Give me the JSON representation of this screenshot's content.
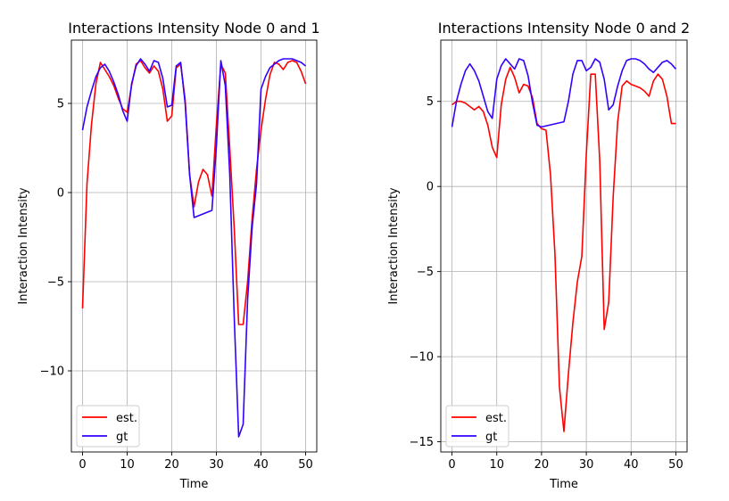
{
  "chart_data": [
    {
      "type": "line",
      "title": "Interactions Intensity Node 0 and 1",
      "xlabel": "Time",
      "ylabel": "Interaction Intensity",
      "xlim": [
        -2.5,
        52.5
      ],
      "ylim": [
        -14.55,
        8.55
      ],
      "xticks": [
        0,
        10,
        20,
        30,
        40,
        50
      ],
      "xtick_labels": [
        "0",
        "10",
        "20",
        "30",
        "40",
        "50"
      ],
      "yticks": [
        -10,
        -5,
        0,
        5
      ],
      "ytick_labels": [
        "−10",
        "−5",
        "0",
        "5"
      ],
      "grid": true,
      "legend_position": "lower left",
      "series": [
        {
          "name": "est.",
          "color": "#ff0000",
          "x": [
            0,
            0.5,
            1,
            2,
            3,
            4,
            5,
            6,
            7,
            8,
            9,
            10,
            11,
            12,
            13,
            14,
            15,
            16,
            17,
            18,
            19,
            20,
            21,
            22,
            23,
            24,
            25,
            26,
            27,
            28,
            29,
            30,
            31,
            32,
            33,
            34,
            35,
            36,
            37,
            38,
            39,
            40,
            41,
            42,
            43,
            44,
            45,
            46,
            47,
            48,
            49,
            50
          ],
          "y": [
            -6.5,
            -3.0,
            0.5,
            3.8,
            6.1,
            7.3,
            6.9,
            6.5,
            6.0,
            5.3,
            4.7,
            4.5,
            6.0,
            7.2,
            7.4,
            7.0,
            6.7,
            7.1,
            6.8,
            5.8,
            4.0,
            4.3,
            7.0,
            7.2,
            5.2,
            1.0,
            -0.8,
            0.6,
            1.3,
            1.0,
            -0.2,
            3.8,
            7.2,
            6.7,
            2.5,
            -2.0,
            -7.4,
            -7.4,
            -5.0,
            -1.5,
            1.3,
            3.5,
            5.2,
            6.6,
            7.3,
            7.2,
            6.9,
            7.3,
            7.4,
            7.3,
            6.8,
            6.1
          ]
        },
        {
          "name": "gt",
          "color": "#3300ff",
          "x": [
            0,
            1,
            2,
            3,
            4,
            5,
            6,
            7,
            8,
            9,
            10,
            11,
            12,
            13,
            14,
            15,
            16,
            17,
            18,
            19,
            20,
            21,
            22,
            23,
            24,
            25,
            26,
            29,
            30,
            31,
            32,
            33,
            34,
            35,
            36,
            37,
            38,
            39,
            40,
            41,
            42,
            43,
            44,
            45,
            46,
            47,
            48,
            49,
            50
          ],
          "y": [
            3.5,
            4.8,
            5.7,
            6.5,
            7.0,
            7.2,
            6.8,
            6.2,
            5.5,
            4.6,
            4.0,
            6.1,
            7.1,
            7.5,
            7.2,
            6.8,
            7.4,
            7.3,
            6.4,
            4.8,
            4.9,
            7.1,
            7.3,
            5.0,
            1.0,
            -1.4,
            -1.3,
            -1.0,
            2.6,
            7.4,
            6.0,
            1.0,
            -7.0,
            -13.7,
            -13.0,
            -6.0,
            -2.0,
            0.5,
            5.8,
            6.5,
            7.0,
            7.2,
            7.4,
            7.5,
            7.5,
            7.5,
            7.4,
            7.3,
            7.1
          ]
        }
      ]
    },
    {
      "type": "line",
      "title": "Interactions Intensity Node 0 and 2",
      "xlabel": "Time",
      "ylabel": "Interaction Intensity",
      "xlim": [
        -2.5,
        52.5
      ],
      "ylim": [
        -15.6,
        8.6
      ],
      "xticks": [
        0,
        10,
        20,
        30,
        40,
        50
      ],
      "xtick_labels": [
        "0",
        "10",
        "20",
        "30",
        "40",
        "50"
      ],
      "yticks": [
        -15,
        -10,
        -5,
        0,
        5
      ],
      "ytick_labels": [
        "−15",
        "−10",
        "−5",
        "0",
        "5"
      ],
      "grid": true,
      "legend_position": "lower left",
      "series": [
        {
          "name": "est.",
          "color": "#ff0000",
          "x": [
            0,
            1,
            2,
            3,
            4,
            5,
            6,
            7,
            8,
            9,
            10,
            11,
            12,
            13,
            14,
            15,
            16,
            17,
            18,
            19,
            20,
            21,
            22,
            23,
            24,
            25,
            26,
            27,
            28,
            29,
            30,
            31,
            32,
            33,
            34,
            35,
            36,
            37,
            38,
            39,
            40,
            41,
            42,
            43,
            44,
            45,
            46,
            47,
            48,
            49,
            50
          ],
          "y": [
            4.8,
            5.0,
            5.0,
            4.9,
            4.7,
            4.5,
            4.7,
            4.4,
            3.6,
            2.3,
            1.7,
            4.8,
            6.3,
            7.0,
            6.4,
            5.5,
            6.0,
            5.9,
            5.2,
            3.7,
            3.4,
            3.3,
            0.7,
            -4.0,
            -11.8,
            -14.4,
            -11.0,
            -8.0,
            -5.6,
            -4.1,
            1.9,
            6.6,
            6.6,
            1.5,
            -8.4,
            -6.8,
            -0.6,
            3.8,
            5.9,
            6.2,
            6.0,
            5.9,
            5.8,
            5.6,
            5.3,
            6.2,
            6.6,
            6.3,
            5.3,
            3.7,
            3.7
          ]
        },
        {
          "name": "gt",
          "color": "#3300ff",
          "x": [
            0,
            1,
            2,
            3,
            4,
            5,
            6,
            7,
            8,
            9,
            10,
            11,
            12,
            13,
            14,
            15,
            16,
            17,
            18,
            19,
            20,
            25,
            26,
            27,
            28,
            29,
            30,
            31,
            32,
            33,
            34,
            35,
            36,
            37,
            38,
            39,
            40,
            41,
            42,
            43,
            44,
            45,
            46,
            47,
            48,
            49,
            50
          ],
          "y": [
            3.5,
            5.0,
            6.0,
            6.8,
            7.2,
            6.8,
            6.2,
            5.3,
            4.4,
            4.0,
            6.3,
            7.1,
            7.5,
            7.2,
            6.9,
            7.5,
            7.4,
            6.5,
            4.9,
            3.6,
            3.5,
            3.8,
            5.0,
            6.6,
            7.4,
            7.4,
            6.8,
            7.0,
            7.5,
            7.3,
            6.3,
            4.5,
            4.8,
            5.9,
            6.8,
            7.4,
            7.5,
            7.5,
            7.4,
            7.2,
            6.9,
            6.7,
            7.0,
            7.3,
            7.4,
            7.2,
            6.9
          ]
        }
      ]
    }
  ]
}
